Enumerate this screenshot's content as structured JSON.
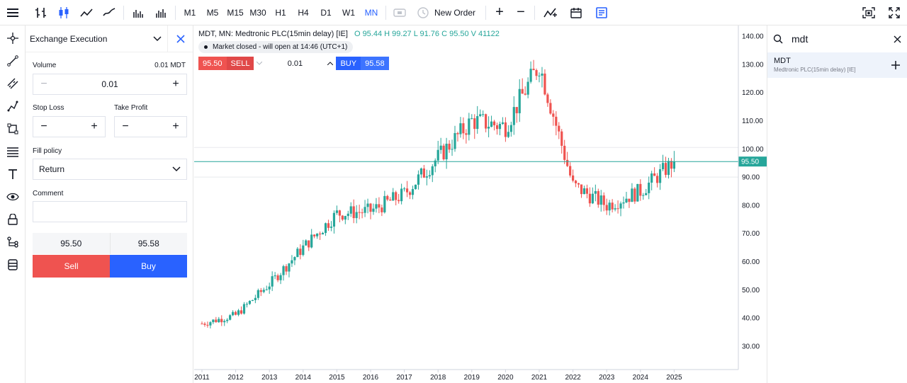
{
  "toolbar": {
    "timeframes": [
      "M1",
      "M5",
      "M15",
      "M30",
      "H1",
      "H4",
      "D1",
      "W1",
      "MN"
    ],
    "active_timeframe": "MN",
    "new_order_label": "New Order",
    "plus": "+",
    "minus": "−"
  },
  "order_panel": {
    "title": "Exchange Execution",
    "volume_label": "Volume",
    "volume_value": "0.01",
    "volume_units": "0.01 MDT",
    "stop_loss_label": "Stop Loss",
    "take_profit_label": "Take Profit",
    "fill_policy_label": "Fill policy",
    "fill_policy_value": "Return",
    "comment_label": "Comment",
    "comment_value": "",
    "bid": "95.50",
    "ask": "95.58",
    "sell_label": "Sell",
    "buy_label": "Buy"
  },
  "chart": {
    "symbol_line": "MDT, MN: Medtronic PLC(15min delay) [IE]",
    "ohlc": "O 95.44 H 99.27 L 91.76 C 95.50 V 41122",
    "market_status": "Market closed - will open at 14:46 (UTC+1)",
    "trade_sell_price": "95.50",
    "trade_sell_label": "SELL",
    "trade_volume": "0.01",
    "trade_buy_label": "BUY",
    "trade_buy_price": "95.58",
    "current_price_label": "95.50",
    "y_ticks": [
      "140.00",
      "130.00",
      "120.00",
      "110.00",
      "100.00",
      "90.00",
      "80.00",
      "70.00",
      "60.00",
      "50.00",
      "40.00",
      "30.00"
    ],
    "x_ticks": [
      "2011",
      "2012",
      "2013",
      "2014",
      "2015",
      "2016",
      "2017",
      "2018",
      "2019",
      "2020",
      "2021",
      "2022",
      "2023",
      "2024",
      "2025"
    ],
    "colors": {
      "up": "#26a69a",
      "down": "#ef5350",
      "price_line": "#26a69a"
    }
  },
  "chart_data": {
    "type": "candlestick",
    "title": "MDT, MN: Medtronic PLC(15min delay) [IE]",
    "ylim": [
      25,
      145
    ],
    "y_ticks": [
      30,
      40,
      50,
      60,
      70,
      80,
      90,
      100,
      110,
      120,
      130,
      140
    ],
    "x": [
      "2011",
      "2012",
      "2013",
      "2014",
      "2015",
      "2016",
      "2017",
      "2018",
      "2019",
      "2020",
      "2021",
      "2022",
      "2023",
      "2024",
      "2025"
    ],
    "close_path_yearly": [
      38,
      41,
      52,
      65,
      77,
      78,
      84,
      97,
      110,
      108,
      130,
      87,
      80,
      85,
      95.5
    ],
    "last_close": 95.5
  },
  "search": {
    "query": "mdt",
    "result_symbol": "MDT",
    "result_description": "Medtronic PLC(15min delay) [IE]"
  }
}
